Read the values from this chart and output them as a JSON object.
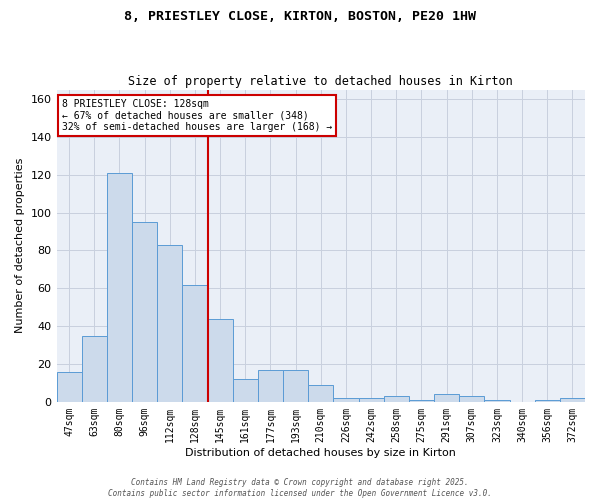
{
  "title1": "8, PRIESTLEY CLOSE, KIRTON, BOSTON, PE20 1HW",
  "title2": "Size of property relative to detached houses in Kirton",
  "xlabel": "Distribution of detached houses by size in Kirton",
  "ylabel": "Number of detached properties",
  "categories": [
    "47sqm",
    "63sqm",
    "80sqm",
    "96sqm",
    "112sqm",
    "128sqm",
    "145sqm",
    "161sqm",
    "177sqm",
    "193sqm",
    "210sqm",
    "226sqm",
    "242sqm",
    "258sqm",
    "275sqm",
    "291sqm",
    "307sqm",
    "323sqm",
    "340sqm",
    "356sqm",
    "372sqm"
  ],
  "values": [
    16,
    35,
    121,
    95,
    83,
    62,
    44,
    12,
    17,
    17,
    9,
    2,
    2,
    3,
    1,
    4,
    3,
    1,
    0,
    1,
    2
  ],
  "bar_color": "#ccdaeb",
  "bar_edge_color": "#5b9bd5",
  "vline_x": 5.5,
  "vline_color": "#cc0000",
  "annotation_text": "8 PRIESTLEY CLOSE: 128sqm\n← 67% of detached houses are smaller (348)\n32% of semi-detached houses are larger (168) →",
  "annotation_box_color": "#cc0000",
  "grid_color": "#c8d0de",
  "background_color": "#eaeff7",
  "footer": "Contains HM Land Registry data © Crown copyright and database right 2025.\nContains public sector information licensed under the Open Government Licence v3.0.",
  "ylim": [
    0,
    165
  ],
  "yticks": [
    0,
    20,
    40,
    60,
    80,
    100,
    120,
    140,
    160
  ]
}
